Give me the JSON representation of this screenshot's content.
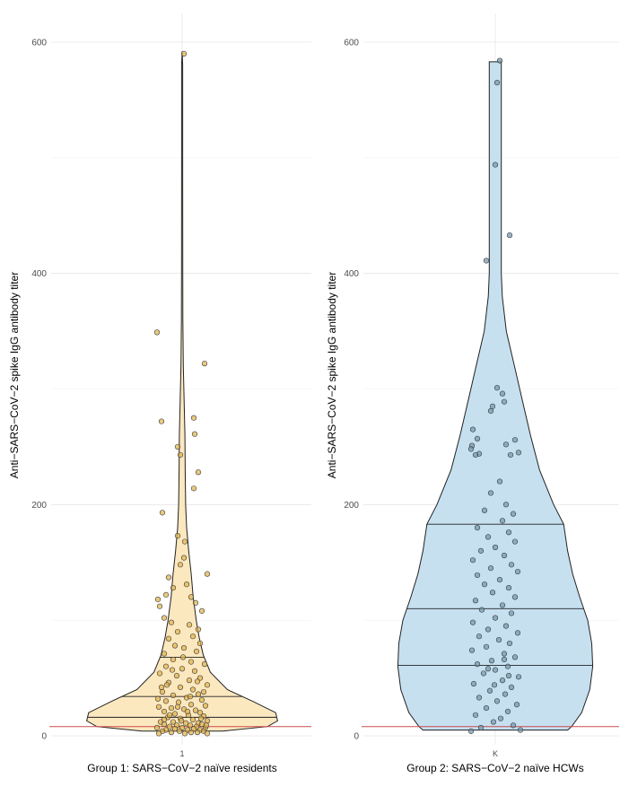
{
  "chart_data": [
    {
      "type": "violin",
      "panel": "left",
      "xlabel": "Group 1: SARS−CoV−2 naïve residents",
      "ylabel": "Anti−SARS−CoV−2 spike IgG antibody titer",
      "category_tick": "1",
      "ylim": [
        0,
        600
      ],
      "yticks": [
        0,
        200,
        400,
        600
      ],
      "fill_color": "#fce8bf",
      "point_color": "#e0b24a",
      "reference_line": 8,
      "quantiles": [
        16,
        34,
        68
      ],
      "density_profile": [
        [
          4,
          0.4
        ],
        [
          8,
          0.85
        ],
        [
          13,
          0.95
        ],
        [
          20,
          0.93
        ],
        [
          30,
          0.7
        ],
        [
          40,
          0.45
        ],
        [
          55,
          0.28
        ],
        [
          70,
          0.21
        ],
        [
          85,
          0.17
        ],
        [
          100,
          0.14
        ],
        [
          120,
          0.11
        ],
        [
          140,
          0.09
        ],
        [
          160,
          0.065
        ],
        [
          180,
          0.045
        ],
        [
          200,
          0.035
        ],
        [
          230,
          0.03
        ],
        [
          260,
          0.028
        ],
        [
          290,
          0.02
        ],
        [
          320,
          0.012
        ],
        [
          360,
          0.007
        ],
        [
          400,
          0.006
        ],
        [
          500,
          0.005
        ],
        [
          580,
          0.005
        ],
        [
          592,
          0.0
        ]
      ],
      "points": [
        [
          0.02,
          590
        ],
        [
          -0.28,
          349
        ],
        [
          0.25,
          322
        ],
        [
          -0.23,
          272
        ],
        [
          0.13,
          275
        ],
        [
          0.14,
          261
        ],
        [
          0.18,
          228
        ],
        [
          -0.05,
          250
        ],
        [
          -0.02,
          243
        ],
        [
          0.13,
          214
        ],
        [
          -0.22,
          193
        ],
        [
          -0.05,
          173
        ],
        [
          0.03,
          168
        ],
        [
          0.02,
          154
        ],
        [
          -0.02,
          148
        ],
        [
          0.28,
          140
        ],
        [
          -0.15,
          137
        ],
        [
          -0.27,
          118
        ],
        [
          -0.25,
          112
        ],
        [
          -0.18,
          122
        ],
        [
          -0.1,
          128
        ],
        [
          0.05,
          131
        ],
        [
          0.1,
          120
        ],
        [
          0.15,
          115
        ],
        [
          0.22,
          108
        ],
        [
          -0.2,
          102
        ],
        [
          -0.12,
          98
        ],
        [
          0.08,
          96
        ],
        [
          0.18,
          92
        ],
        [
          -0.05,
          90
        ],
        [
          0.12,
          86
        ],
        [
          -0.15,
          84
        ],
        [
          0.2,
          80
        ],
        [
          -0.08,
          78
        ],
        [
          0.02,
          76
        ],
        [
          0.16,
          73
        ],
        [
          -0.2,
          71
        ],
        [
          -0.1,
          66
        ],
        [
          0.1,
          64
        ],
        [
          0.25,
          62
        ],
        [
          -0.18,
          60
        ],
        [
          0.0,
          58
        ],
        [
          0.14,
          56
        ],
        [
          -0.25,
          54
        ],
        [
          -0.06,
          52
        ],
        [
          0.2,
          50
        ],
        [
          0.08,
          48
        ],
        [
          -0.15,
          46
        ],
        [
          0.28,
          44
        ],
        [
          -0.02,
          42
        ],
        [
          0.12,
          40
        ],
        [
          -0.22,
          38
        ],
        [
          0.18,
          36
        ],
        [
          -0.1,
          35
        ],
        [
          0.05,
          33
        ],
        [
          0.22,
          31
        ],
        [
          -0.18,
          30
        ],
        [
          -0.04,
          29
        ],
        [
          0.1,
          27
        ],
        [
          0.26,
          26
        ],
        [
          -0.26,
          25
        ],
        [
          -0.12,
          24
        ],
        [
          0.02,
          23
        ],
        [
          0.15,
          22
        ],
        [
          -0.2,
          21
        ],
        [
          0.2,
          20
        ],
        [
          -0.08,
          19
        ],
        [
          0.07,
          18
        ],
        [
          0.24,
          17
        ],
        [
          -0.16,
          16
        ],
        [
          -0.02,
          15
        ],
        [
          0.12,
          14
        ],
        [
          0.28,
          13
        ],
        [
          -0.24,
          12
        ],
        [
          -0.1,
          12
        ],
        [
          0.04,
          11
        ],
        [
          0.18,
          11
        ],
        [
          -0.2,
          10
        ],
        [
          0.22,
          10
        ],
        [
          -0.06,
          9
        ],
        [
          0.09,
          9
        ],
        [
          0.16,
          8
        ],
        [
          -0.14,
          8
        ],
        [
          0.26,
          7
        ],
        [
          -0.28,
          7
        ],
        [
          0.0,
          7
        ],
        [
          -0.08,
          6
        ],
        [
          0.13,
          6
        ],
        [
          0.2,
          5
        ],
        [
          -0.18,
          5
        ],
        [
          0.06,
          5
        ],
        [
          -0.03,
          4
        ],
        [
          0.24,
          4
        ],
        [
          -0.22,
          4
        ],
        [
          0.1,
          3
        ],
        [
          -0.12,
          3
        ],
        [
          0.17,
          3
        ],
        [
          -0.26,
          2
        ],
        [
          0.03,
          2
        ],
        [
          0.28,
          2
        ],
        [
          -0.05,
          25
        ],
        [
          0.09,
          34
        ],
        [
          -0.17,
          44
        ],
        [
          0.24,
          38
        ],
        [
          -0.27,
          32
        ],
        [
          0.01,
          68
        ],
        [
          -0.11,
          57
        ],
        [
          0.17,
          47
        ],
        [
          -0.23,
          42
        ],
        [
          0.06,
          21
        ],
        [
          -0.14,
          18
        ],
        [
          0.21,
          15
        ],
        [
          -0.01,
          13
        ],
        [
          0.27,
          9
        ],
        [
          -0.2,
          14
        ]
      ]
    },
    {
      "type": "violin",
      "panel": "right",
      "xlabel": "Group 2: SARS−CoV−2 naïve HCWs",
      "ylabel": "Anti−SARS−CoV−2 spike IgG antibody titer",
      "category_tick": "K",
      "ylim": [
        0,
        600
      ],
      "yticks": [
        0,
        200,
        400,
        600
      ],
      "fill_color": "#c6e0f0",
      "point_color": "#6f95ad",
      "reference_line": 8,
      "quantiles": [
        61,
        110,
        183
      ],
      "density_profile": [
        [
          5,
          0.72
        ],
        [
          8,
          0.76
        ],
        [
          20,
          0.86
        ],
        [
          40,
          0.94
        ],
        [
          60,
          0.97
        ],
        [
          80,
          0.96
        ],
        [
          100,
          0.92
        ],
        [
          120,
          0.84
        ],
        [
          140,
          0.77
        ],
        [
          160,
          0.72
        ],
        [
          183,
          0.68
        ],
        [
          200,
          0.58
        ],
        [
          230,
          0.44
        ],
        [
          260,
          0.35
        ],
        [
          290,
          0.27
        ],
        [
          320,
          0.19
        ],
        [
          350,
          0.11
        ],
        [
          380,
          0.07
        ],
        [
          400,
          0.06
        ],
        [
          440,
          0.06
        ],
        [
          480,
          0.06
        ],
        [
          520,
          0.06
        ],
        [
          560,
          0.06
        ],
        [
          583,
          0.06
        ]
      ],
      "points": [
        [
          0.05,
          584
        ],
        [
          0.02,
          565
        ],
        [
          0.0,
          494
        ],
        [
          0.16,
          433
        ],
        [
          -0.1,
          411
        ],
        [
          0.02,
          301
        ],
        [
          0.08,
          296
        ],
        [
          0.1,
          289
        ],
        [
          -0.03,
          285
        ],
        [
          -0.05,
          281
        ],
        [
          -0.25,
          265
        ],
        [
          -0.2,
          257
        ],
        [
          0.22,
          256
        ],
        [
          -0.26,
          251
        ],
        [
          -0.27,
          248
        ],
        [
          0.12,
          252
        ],
        [
          -0.18,
          244
        ],
        [
          -0.22,
          243
        ],
        [
          0.17,
          243
        ],
        [
          0.26,
          245
        ],
        [
          0.05,
          220
        ],
        [
          -0.05,
          210
        ],
        [
          0.12,
          200
        ],
        [
          -0.12,
          195
        ],
        [
          0.2,
          192
        ],
        [
          0.08,
          186
        ],
        [
          -0.2,
          180
        ],
        [
          0.15,
          176
        ],
        [
          -0.08,
          172
        ],
        [
          0.22,
          168
        ],
        [
          0.0,
          163
        ],
        [
          -0.16,
          160
        ],
        [
          0.1,
          156
        ],
        [
          -0.25,
          152
        ],
        [
          0.18,
          148
        ],
        [
          -0.05,
          145
        ],
        [
          0.25,
          142
        ],
        [
          -0.2,
          139
        ],
        [
          0.05,
          135
        ],
        [
          -0.12,
          131
        ],
        [
          0.15,
          128
        ],
        [
          -0.03,
          124
        ],
        [
          0.22,
          120
        ],
        [
          -0.22,
          117
        ],
        [
          0.08,
          113
        ],
        [
          -0.15,
          109
        ],
        [
          0.18,
          106
        ],
        [
          0.0,
          102
        ],
        [
          -0.25,
          98
        ],
        [
          0.12,
          95
        ],
        [
          -0.08,
          92
        ],
        [
          0.25,
          89
        ],
        [
          -0.18,
          86
        ],
        [
          0.04,
          83
        ],
        [
          0.16,
          80
        ],
        [
          -0.1,
          77
        ],
        [
          -0.26,
          74
        ],
        [
          0.1,
          71
        ],
        [
          0.22,
          68
        ],
        [
          -0.04,
          65
        ],
        [
          -0.2,
          62
        ],
        [
          0.14,
          60
        ],
        [
          0.0,
          57
        ],
        [
          -0.13,
          54
        ],
        [
          0.26,
          51
        ],
        [
          0.08,
          48
        ],
        [
          -0.24,
          45
        ],
        [
          0.18,
          42
        ],
        [
          -0.06,
          39
        ],
        [
          0.11,
          36
        ],
        [
          -0.18,
          33
        ],
        [
          0.02,
          30
        ],
        [
          0.24,
          27
        ],
        [
          -0.1,
          24
        ],
        [
          0.14,
          21
        ],
        [
          -0.22,
          18
        ],
        [
          0.06,
          15
        ],
        [
          -0.02,
          12
        ],
        [
          0.2,
          9
        ],
        [
          -0.16,
          7
        ],
        [
          0.28,
          5
        ],
        [
          -0.27,
          4
        ],
        [
          0.1,
          66
        ],
        [
          -0.08,
          58
        ],
        [
          0.15,
          52
        ],
        [
          -0.01,
          44
        ]
      ]
    }
  ]
}
